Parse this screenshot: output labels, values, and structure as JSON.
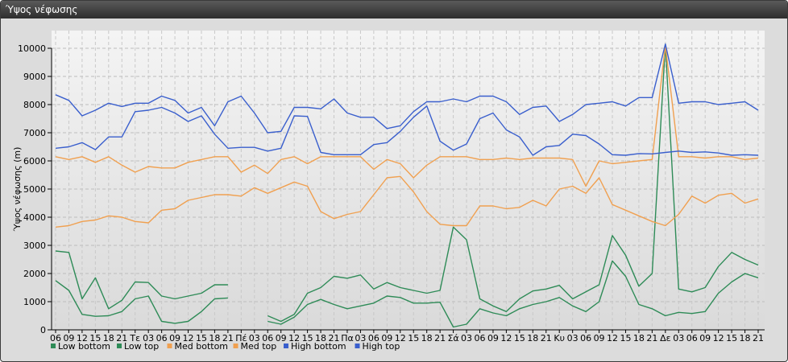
{
  "window": {
    "title": "Ύψος νέφωσης"
  },
  "colors": {
    "low": "#2e8b57",
    "med": "#f0a050",
    "high": "#3a5fcd"
  },
  "chart_data": {
    "type": "line",
    "title": "",
    "ylabel": "Ύψος νέφωσης (m)",
    "xlabel": "",
    "ylim": [
      0,
      10000
    ],
    "yticks": [
      0,
      1000,
      2000,
      3000,
      4000,
      5000,
      6000,
      7000,
      8000,
      9000,
      10000
    ],
    "grid": true,
    "legend_position": "bottom-left",
    "x_tick_labels": [
      "06",
      "09",
      "12",
      "15",
      "18",
      "21",
      "Τε",
      "03",
      "06",
      "09",
      "12",
      "15",
      "18",
      "21",
      "Πέ",
      "03",
      "06",
      "09",
      "12",
      "15",
      "18",
      "21",
      "Πα",
      "03",
      "06",
      "09",
      "12",
      "15",
      "18",
      "21",
      "Σά",
      "03",
      "06",
      "09",
      "12",
      "15",
      "18",
      "21",
      "Κυ",
      "03",
      "06",
      "09",
      "12",
      "15",
      "18",
      "21",
      "Δε",
      "03",
      "06",
      "09",
      "12",
      "15",
      "18",
      "21"
    ],
    "series": [
      {
        "name": "Low bottom",
        "color": "#2e8b57",
        "values": [
          1750,
          1400,
          550,
          480,
          500,
          650,
          1100,
          1200,
          300,
          230,
          300,
          650,
          1100,
          1130,
          null,
          null,
          300,
          200,
          450,
          900,
          1080,
          900,
          750,
          850,
          950,
          1200,
          1150,
          950,
          950,
          980,
          100,
          200,
          750,
          600,
          500,
          750,
          900,
          1000,
          1150,
          850,
          650,
          1000,
          2450,
          1900,
          900,
          750,
          500,
          620,
          580,
          650,
          1300,
          1700,
          2000,
          1850
        ]
      },
      {
        "name": "Low top",
        "color": "#2e8b57",
        "values": [
          2800,
          2750,
          1100,
          1850,
          750,
          1050,
          1700,
          1680,
          1200,
          1100,
          1200,
          1300,
          1600,
          1600,
          null,
          null,
          500,
          300,
          550,
          1300,
          1500,
          1900,
          1830,
          1950,
          1450,
          1680,
          1500,
          1400,
          1300,
          1400,
          3650,
          3200,
          1100,
          850,
          650,
          1100,
          1380,
          1450,
          1580,
          1100,
          1350,
          1600,
          3350,
          2650,
          1550,
          2000,
          10150,
          1450,
          1350,
          1500,
          2250,
          2750,
          2500,
          2300
        ]
      },
      {
        "name": "Med bottom",
        "color": "#f0a050",
        "values": [
          3650,
          3700,
          3850,
          3900,
          4050,
          4000,
          3850,
          3800,
          4250,
          4300,
          4600,
          4700,
          4800,
          4800,
          4750,
          5050,
          4850,
          5050,
          5250,
          5100,
          4200,
          3950,
          4100,
          4200,
          4800,
          5400,
          5450,
          4900,
          4200,
          3750,
          3700,
          3700,
          4400,
          4400,
          4300,
          4350,
          4600,
          4400,
          5000,
          5100,
          4850,
          5400,
          4450,
          4250,
          4050,
          3850,
          3700,
          4100,
          4750,
          4500,
          4780,
          4850,
          4500,
          4650
        ]
      },
      {
        "name": "Med top",
        "color": "#f0a050",
        "values": [
          6150,
          6050,
          6150,
          5950,
          6150,
          5850,
          5600,
          5800,
          5750,
          5750,
          5950,
          6050,
          6150,
          6150,
          5600,
          5850,
          5550,
          6050,
          6150,
          5900,
          6150,
          6150,
          6150,
          6150,
          5700,
          6050,
          5900,
          5400,
          5850,
          6150,
          6150,
          6150,
          6050,
          6050,
          6100,
          6050,
          6100,
          6100,
          6100,
          6050,
          5100,
          6000,
          5900,
          5950,
          6000,
          6050,
          10100,
          6150,
          6150,
          6100,
          6150,
          6150,
          6050,
          6100
        ]
      },
      {
        "name": "High bottom",
        "color": "#3a5fcd",
        "values": [
          6450,
          6500,
          6650,
          6400,
          6850,
          6850,
          7750,
          7800,
          7900,
          7700,
          7400,
          7600,
          6950,
          6450,
          6480,
          6480,
          6350,
          6450,
          7600,
          7580,
          6300,
          6220,
          6220,
          6220,
          6580,
          6650,
          7050,
          7550,
          7950,
          6700,
          6380,
          6600,
          7500,
          7700,
          7100,
          6850,
          6200,
          6500,
          6550,
          6950,
          6900,
          6600,
          6220,
          6200,
          6260,
          6250,
          6300,
          6350,
          6300,
          6320,
          6280,
          6200,
          6220,
          6200
        ]
      },
      {
        "name": "High top",
        "color": "#3a5fcd",
        "values": [
          8350,
          8150,
          7600,
          7800,
          8050,
          7930,
          8050,
          8050,
          8300,
          8150,
          7700,
          7900,
          7250,
          8100,
          8300,
          7700,
          7000,
          7050,
          7900,
          7900,
          7850,
          8200,
          7700,
          7550,
          7550,
          7150,
          7250,
          7750,
          8100,
          8100,
          8200,
          8100,
          8300,
          8300,
          8100,
          7650,
          7900,
          7950,
          7400,
          7650,
          8000,
          8050,
          8100,
          7950,
          8250,
          8250,
          10150,
          8050,
          8100,
          8100,
          8000,
          8050,
          8100,
          7800
        ]
      }
    ]
  }
}
